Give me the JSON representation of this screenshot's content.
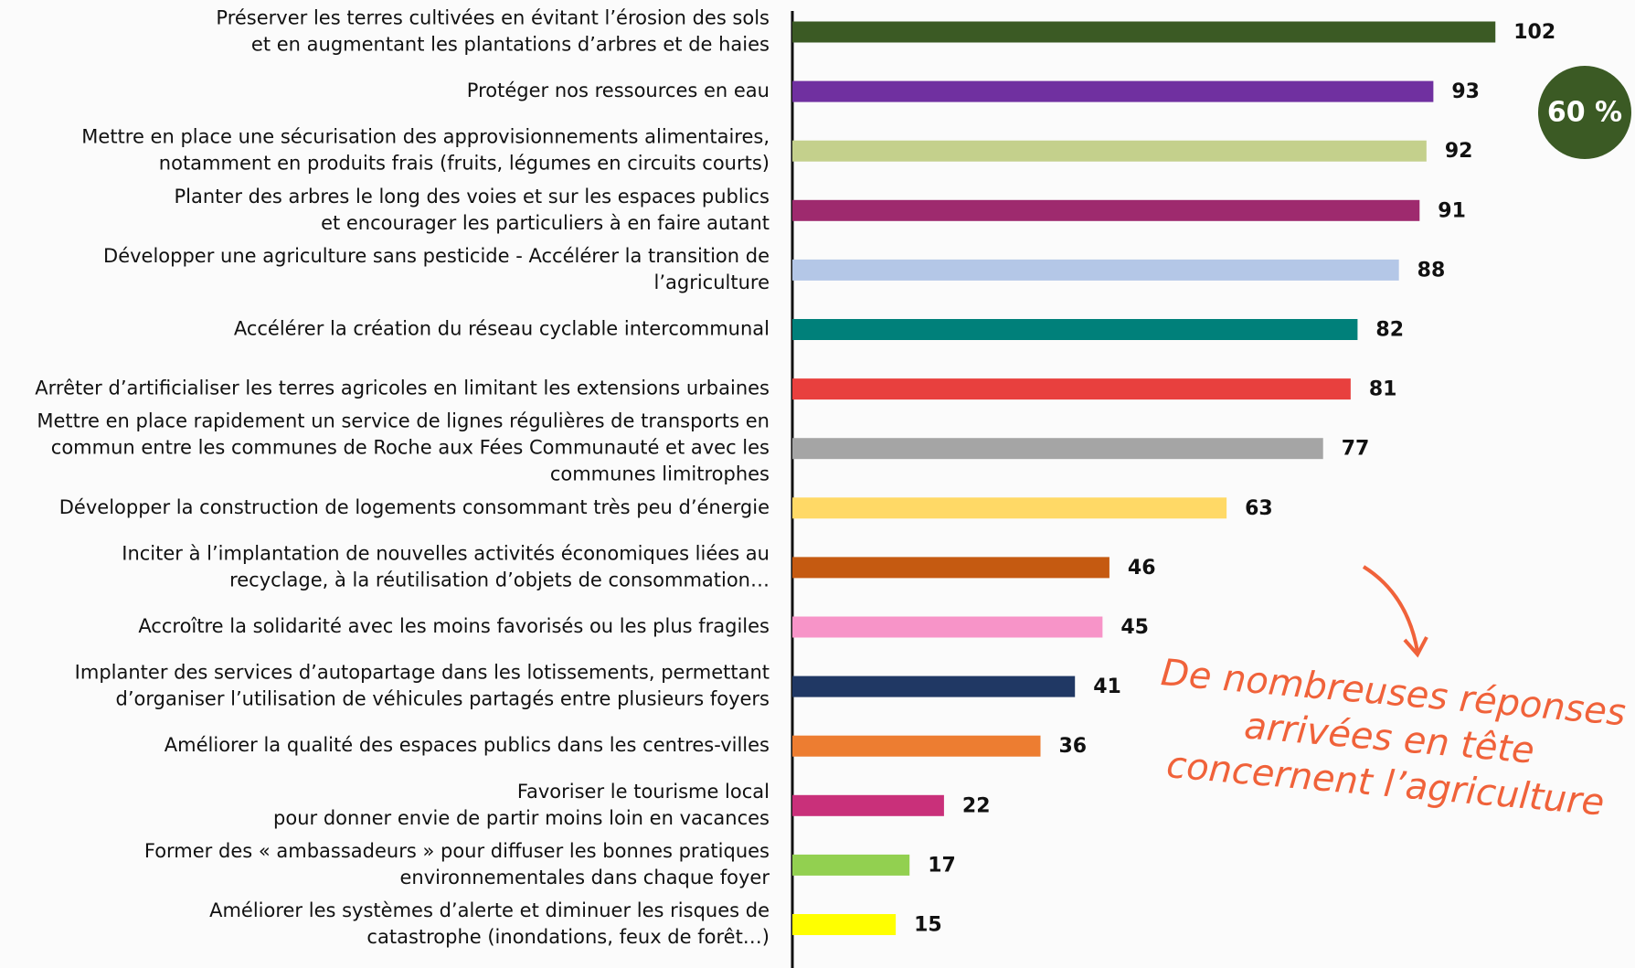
{
  "chart_data": {
    "type": "barh",
    "categories": [
      [
        "Préserver les terres cultivées en évitant l’érosion des sols",
        "et en augmentant les plantations d’arbres et de haies"
      ],
      [
        "Protéger nos ressources en eau"
      ],
      [
        "Mettre en place une sécurisation des approvisionnements alimentaires,",
        "notamment en produits frais (fruits, légumes en circuits courts)"
      ],
      [
        "Planter des arbres le long des voies et sur les espaces publics",
        "et encourager les particuliers à en faire autant"
      ],
      [
        "Développer une agriculture sans pesticide - Accélérer la transition de",
        "l’agriculture"
      ],
      [
        "Accélérer la création du réseau cyclable intercommunal"
      ],
      [
        "Arrêter d’artificialiser les terres agricoles en limitant les extensions urbaines"
      ],
      [
        "Mettre en place rapidement un service de lignes régulières de transports en",
        "commun entre les communes de Roche aux Fées Communauté et avec les",
        "communes limitrophes"
      ],
      [
        "Développer la construction de logements consommant très peu d’énergie"
      ],
      [
        "Inciter à l’implantation de nouvelles activités économiques liées au",
        "recyclage, à la réutilisation d’objets de consommation…"
      ],
      [
        "Accroître la solidarité avec les moins favorisés ou les plus fragiles"
      ],
      [
        "Implanter des services d’autopartage dans les lotissements, permettant",
        "d’organiser l’utilisation de véhicules partagés entre plusieurs foyers"
      ],
      [
        "Améliorer la qualité des espaces publics dans les centres-villes"
      ],
      [
        "Favoriser le tourisme local",
        "pour donner envie de partir moins loin en vacances"
      ],
      [
        "Former des « ambassadeurs » pour diffuser les bonnes pratiques",
        "environnementales dans chaque foyer"
      ],
      [
        "Améliorer les systèmes d’alerte et diminuer les risques de",
        "catastrophe (inondations, feux de forêt…)"
      ]
    ],
    "values": [
      102,
      93,
      92,
      91,
      88,
      82,
      81,
      77,
      63,
      46,
      45,
      41,
      36,
      22,
      17,
      15
    ],
    "colors": [
      "#3b5a24",
      "#7030a0",
      "#c4d08c",
      "#9e2a6e",
      "#b4c7e7",
      "#00807a",
      "#e8403e",
      "#a5a5a5",
      "#ffd966",
      "#c55a11",
      "#f794c8",
      "#203864",
      "#ed7d31",
      "#c9307a",
      "#92d050",
      "#ffff00"
    ],
    "xlim": [
      0,
      120
    ],
    "annotations": {
      "badge": "60 %",
      "note": [
        "De nombreuses réponses",
        "arrivées en tête",
        "concernent l’agriculture"
      ]
    }
  }
}
